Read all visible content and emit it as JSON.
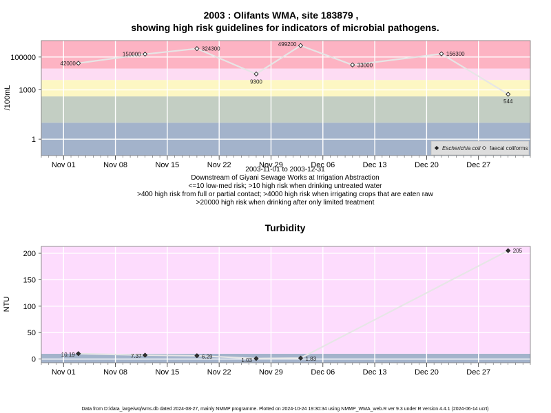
{
  "chart_data": [
    {
      "type": "line",
      "title": "2003 : Olifants WMA, site 183879 ,",
      "title2": "showing high risk guidelines for indicators of microbial pathogens.",
      "ylabel": "/100mL",
      "yscale": "log",
      "ylim": [
        0.1,
        1000000
      ],
      "yticks": [
        {
          "value": 1,
          "label": "1"
        },
        {
          "value": 1000,
          "label": "1000"
        },
        {
          "value": 100000,
          "label": "100000"
        }
      ],
      "xticks": [
        {
          "date": "2003-11-01",
          "label": "Nov 01"
        },
        {
          "date": "2003-11-08",
          "label": "Nov 08"
        },
        {
          "date": "2003-11-15",
          "label": "Nov 15"
        },
        {
          "date": "2003-11-22",
          "label": "Nov 22"
        },
        {
          "date": "2003-11-29",
          "label": "Nov 29"
        },
        {
          "date": "2003-12-06",
          "label": "Dec 06"
        },
        {
          "date": "2003-12-13",
          "label": "Dec 13"
        },
        {
          "date": "2003-12-20",
          "label": "Dec 20"
        },
        {
          "date": "2003-12-27",
          "label": "Dec 27"
        }
      ],
      "xlim": [
        "2003-10-29",
        "2004-01-03"
      ],
      "bands": [
        {
          "from": 0.1,
          "to": 10,
          "color": "#a3b3cb"
        },
        {
          "from": 10,
          "to": 400,
          "color": "#c3cec3"
        },
        {
          "from": 400,
          "to": 4000,
          "color": "#fdf7c3"
        },
        {
          "from": 4000,
          "to": 20000,
          "color": "#fddcf3"
        },
        {
          "from": 20000,
          "to": 1000000,
          "color": "#fdb3c3"
        }
      ],
      "series": [
        {
          "name": "faecal coliforms",
          "marker": "open-diamond",
          "points": [
            {
              "x": "2003-11-03",
              "y": 42000,
              "label": "42000"
            },
            {
              "x": "2003-11-12",
              "y": 150000,
              "label": "150000"
            },
            {
              "x": "2003-11-19",
              "y": 324300,
              "label": "324300"
            },
            {
              "x": "2003-11-27",
              "y": 9300,
              "label": "9300"
            },
            {
              "x": "2003-12-03",
              "y": 499200,
              "label": "499200"
            },
            {
              "x": "2003-12-10",
              "y": 33000,
              "label": "33000"
            },
            {
              "x": "2003-12-22",
              "y": 156300,
              "label": "156300"
            },
            {
              "x": "2003-12-31",
              "y": 544,
              "label": "544"
            }
          ]
        }
      ],
      "legend": {
        "position": "bottom-right",
        "entries": [
          {
            "label": "Escherichia coli",
            "italic": true,
            "marker": "filled-diamond"
          },
          {
            "label": "faecal coliforms",
            "italic": false,
            "marker": "open-diamond"
          }
        ]
      },
      "caption": [
        "2003-11-01 to 2003-12-31",
        "Downstream of Giyani Sewage Works at Irrigation Abstraction",
        "<=10 low-med risk; >10 high risk when drinking untreated water",
        ">400 high risk from full or partial contact; >4000 high risk when irrigating crops that are eaten raw",
        ">20000 high risk when drinking after only limited treatment"
      ]
    },
    {
      "type": "line",
      "title": "Turbidity",
      "ylabel": "NTU",
      "ylim": [
        -7,
        213
      ],
      "yticks": [
        {
          "value": 0,
          "label": "0"
        },
        {
          "value": 50,
          "label": "50"
        },
        {
          "value": 100,
          "label": "100"
        },
        {
          "value": 150,
          "label": "150"
        },
        {
          "value": 200,
          "label": "200"
        }
      ],
      "xticks": [
        {
          "date": "2003-11-01",
          "label": "Nov 01"
        },
        {
          "date": "2003-11-08",
          "label": "Nov 08"
        },
        {
          "date": "2003-11-15",
          "label": "Nov 15"
        },
        {
          "date": "2003-11-22",
          "label": "Nov 22"
        },
        {
          "date": "2003-11-29",
          "label": "Nov 29"
        },
        {
          "date": "2003-12-06",
          "label": "Dec 06"
        },
        {
          "date": "2003-12-13",
          "label": "Dec 13"
        },
        {
          "date": "2003-12-20",
          "label": "Dec 20"
        },
        {
          "date": "2003-12-27",
          "label": "Dec 27"
        }
      ],
      "xlim": [
        "2003-10-29",
        "2004-01-03"
      ],
      "bands": [
        {
          "from": -7,
          "to": 10,
          "color": "#a3b3cb"
        },
        {
          "from": 10,
          "to": 213,
          "color": "#fddcfd"
        }
      ],
      "series": [
        {
          "name": "Turbidity",
          "marker": "filled-diamond",
          "points": [
            {
              "x": "2003-11-03",
              "y": 10.19,
              "label": "10.19"
            },
            {
              "x": "2003-11-12",
              "y": 7.37,
              "label": "7.37"
            },
            {
              "x": "2003-11-19",
              "y": 6.29,
              "label": "6.29"
            },
            {
              "x": "2003-11-27",
              "y": 1.03,
              "label": "1.03"
            },
            {
              "x": "2003-12-03",
              "y": 1.83,
              "label": "1.83"
            },
            {
              "x": "2003-12-31",
              "y": 205,
              "label": "205"
            }
          ]
        }
      ]
    }
  ],
  "footer": "Data from D:/data_large/wq/wms.db dated 2024-08-27, mainly NMMP programme. Plotted on 2024-10-24 19:30:34 using NMMP_WMA_web.R ver 9.3 under R version 4.4.1 (2024-06-14 ucrt)"
}
